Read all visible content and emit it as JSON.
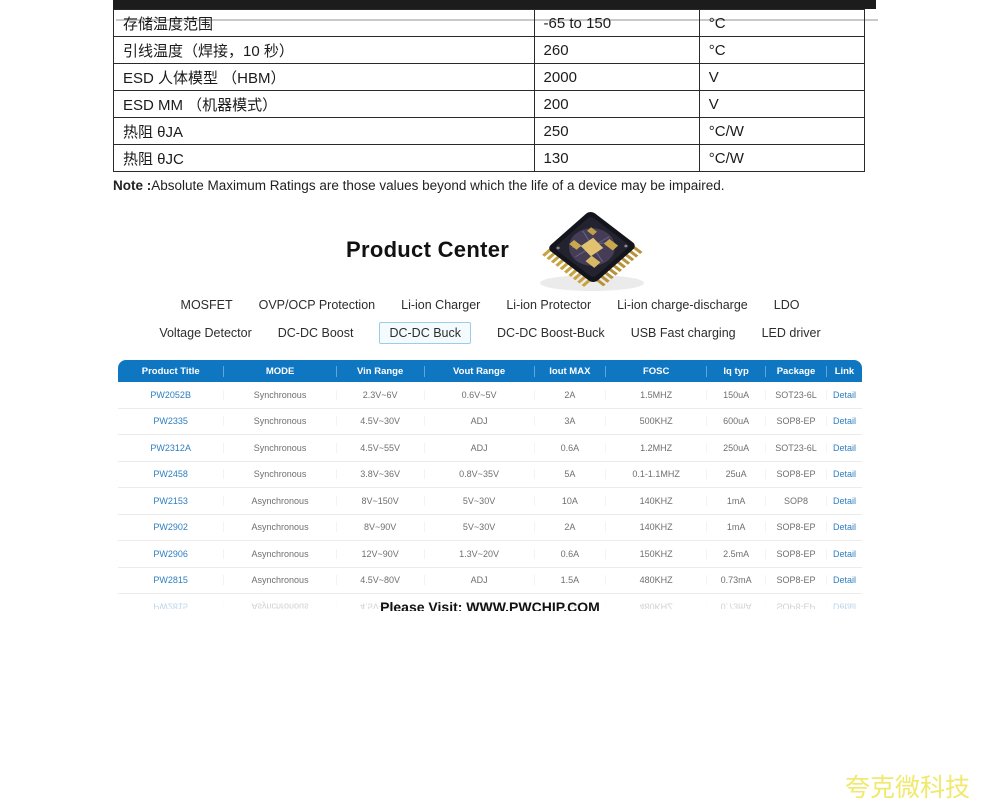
{
  "spec_table": {
    "rows": [
      {
        "parameter": "存储温度范围",
        "value": "-65 to 150",
        "unit": "°C"
      },
      {
        "parameter": "引线温度（焊接，10 秒）",
        "value": "260",
        "unit": "°C"
      },
      {
        "parameter": "ESD 人体模型 （HBM）",
        "value": "2000",
        "unit": "V"
      },
      {
        "parameter": "ESD MM （机器模式）",
        "value": "200",
        "unit": "V"
      },
      {
        "parameter": "热阻 θJA",
        "value": "250",
        "unit": "°C/W"
      },
      {
        "parameter": "热阻 θJC",
        "value": "130",
        "unit": "°C/W"
      }
    ]
  },
  "note": {
    "label": "Note :",
    "text": "Absolute Maximum Ratings are those values beyond which the life of a device may be impaired."
  },
  "product_center": {
    "title": "Product Center",
    "chip_icon": "ic-chip-photo"
  },
  "categories": {
    "row1": [
      "MOSFET",
      "OVP/OCP Protection",
      "Li-ion Charger",
      "Li-ion Protector",
      "Li-ion charge-discharge",
      "LDO"
    ],
    "row2": [
      "Voltage Detector",
      "DC-DC Boost",
      "DC-DC Buck",
      "DC-DC Boost-Buck",
      "USB Fast charging",
      "LED driver"
    ],
    "selected": "DC-DC Buck"
  },
  "product_table": {
    "columns": [
      "Product Title",
      "MODE",
      "Vin Range",
      "Vout Range",
      "Iout MAX",
      "FOSC",
      "Iq typ",
      "Package",
      "Link"
    ],
    "header_bg": "#0f77c2",
    "link_color": "#2e7fc1",
    "rows": [
      [
        "PW2052B",
        "Synchronous",
        "2.3V~6V",
        "0.6V~5V",
        "2A",
        "1.5MHZ",
        "150uA",
        "SOT23-6L",
        "Detail"
      ],
      [
        "PW2335",
        "Synchronous",
        "4.5V~30V",
        "ADJ",
        "3A",
        "500KHZ",
        "600uA",
        "SOP8-EP",
        "Detail"
      ],
      [
        "PW2312A",
        "Synchronous",
        "4.5V~55V",
        "ADJ",
        "0.6A",
        "1.2MHZ",
        "250uA",
        "SOT23-6L",
        "Detail"
      ],
      [
        "PW2458",
        "Synchronous",
        "3.8V~36V",
        "0.8V~35V",
        "5A",
        "0.1-1.1MHZ",
        "25uA",
        "SOP8-EP",
        "Detail"
      ],
      [
        "PW2153",
        "Asynchronous",
        "8V~150V",
        "5V~30V",
        "10A",
        "140KHZ",
        "1mA",
        "SOP8",
        "Detail"
      ],
      [
        "PW2902",
        "Asynchronous",
        "8V~90V",
        "5V~30V",
        "2A",
        "140KHZ",
        "1mA",
        "SOP8-EP",
        "Detail"
      ],
      [
        "PW2906",
        "Asynchronous",
        "12V~90V",
        "1.3V~20V",
        "0.6A",
        "150KHZ",
        "2.5mA",
        "SOP8-EP",
        "Detail"
      ],
      [
        "PW2815",
        "Asynchronous",
        "4.5V~80V",
        "ADJ",
        "1.5A",
        "480KHZ",
        "0.73mA",
        "SOP8-EP",
        "Detail"
      ]
    ],
    "reflection_row": [
      "PW2815",
      "Asynchronous",
      "4.5V~80V",
      "ADJ",
      "1.5A",
      "480KHZ",
      "0.73mA",
      "SOP8-EP",
      "Detail"
    ]
  },
  "footer": {
    "visit_text": "Please Visit: WWW.PWCHIP.COM"
  },
  "watermark": {
    "text": "夸克微科技",
    "color": "#f0e96e"
  }
}
